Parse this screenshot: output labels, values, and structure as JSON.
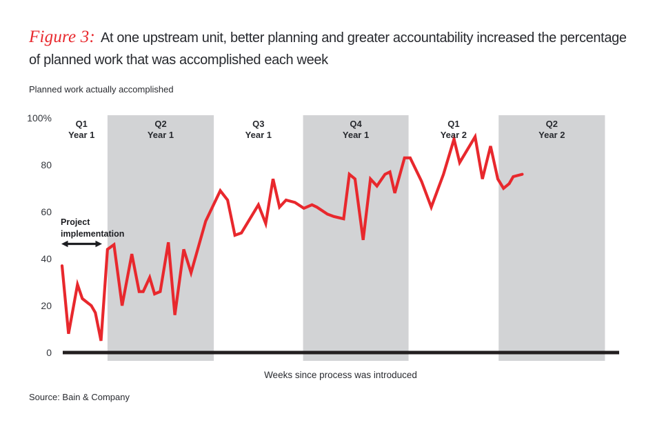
{
  "header": {
    "figure_label": "Figure 3:",
    "title_lines": {
      "l1": "At one upstream unit, better planning and greater accountability increased the percentage",
      "l2": "of planned work that was accomplished each week"
    }
  },
  "annotation": {
    "line1": "Project",
    "line2": "implementation"
  },
  "source": "Source: Bain & Company",
  "chart_data": {
    "type": "line",
    "ylabel": "Planned work actually accomplished",
    "xlabel": "Weeks since process was introduced",
    "ylim": [
      0,
      100
    ],
    "grid": false,
    "legend": false,
    "line_color": "#e8282d",
    "band_color": "#d2d3d5",
    "yticks": [
      {
        "value": 0,
        "label": "0"
      },
      {
        "value": 20,
        "label": "20"
      },
      {
        "value": 40,
        "label": "40"
      },
      {
        "value": 60,
        "label": "60"
      },
      {
        "value": 80,
        "label": "80"
      },
      {
        "value": 100,
        "label": "100%"
      }
    ],
    "quarters": [
      {
        "label": "Q1",
        "sublabel": "Year 1",
        "shaded": false,
        "start_week": 0.0,
        "end_week": 5.6,
        "label_center_week": 2.4
      },
      {
        "label": "Q2",
        "sublabel": "Year 1",
        "shaded": true,
        "start_week": 5.6,
        "end_week": 18.7
      },
      {
        "label": "Q3",
        "sublabel": "Year 1",
        "shaded": false,
        "start_week": 18.7,
        "end_week": 29.7
      },
      {
        "label": "Q4",
        "sublabel": "Year 1",
        "shaded": true,
        "start_week": 29.7,
        "end_week": 42.7
      },
      {
        "label": "Q1",
        "sublabel": "Year 2",
        "shaded": false,
        "start_week": 42.7,
        "end_week": 53.8
      },
      {
        "label": "Q2",
        "sublabel": "Year 2",
        "shaded": true,
        "start_week": 53.8,
        "end_week": 66.9
      }
    ],
    "series": [
      {
        "name": "Planned work actually accomplished",
        "points": [
          [
            0.0,
            37
          ],
          [
            0.8,
            8
          ],
          [
            1.9,
            29
          ],
          [
            2.5,
            23
          ],
          [
            3.6,
            20
          ],
          [
            4.1,
            17
          ],
          [
            4.8,
            5
          ],
          [
            5.6,
            44
          ],
          [
            6.4,
            46
          ],
          [
            7.4,
            20
          ],
          [
            8.6,
            42
          ],
          [
            9.5,
            26
          ],
          [
            10.0,
            26
          ],
          [
            10.8,
            32
          ],
          [
            11.4,
            25
          ],
          [
            12.1,
            26
          ],
          [
            13.1,
            47
          ],
          [
            13.9,
            16
          ],
          [
            15.0,
            44
          ],
          [
            15.9,
            34
          ],
          [
            17.7,
            56
          ],
          [
            19.5,
            69
          ],
          [
            20.4,
            65
          ],
          [
            21.3,
            50
          ],
          [
            22.1,
            51
          ],
          [
            24.2,
            63
          ],
          [
            25.1,
            55
          ],
          [
            26.0,
            74
          ],
          [
            26.8,
            62
          ],
          [
            27.6,
            65
          ],
          [
            28.7,
            64
          ],
          [
            29.8,
            61.5
          ],
          [
            30.8,
            63
          ],
          [
            31.4,
            62
          ],
          [
            32.7,
            59
          ],
          [
            33.5,
            58
          ],
          [
            34.7,
            57
          ],
          [
            35.4,
            76
          ],
          [
            36.1,
            74
          ],
          [
            37.1,
            48
          ],
          [
            38.0,
            74
          ],
          [
            38.8,
            71
          ],
          [
            39.8,
            76
          ],
          [
            40.4,
            77
          ],
          [
            41.0,
            68
          ],
          [
            42.2,
            83
          ],
          [
            42.9,
            83
          ],
          [
            44.3,
            73
          ],
          [
            45.5,
            62
          ],
          [
            47.0,
            76
          ],
          [
            48.3,
            91
          ],
          [
            49.0,
            81
          ],
          [
            50.9,
            92
          ],
          [
            51.8,
            74
          ],
          [
            52.8,
            88
          ],
          [
            53.7,
            74
          ],
          [
            54.4,
            70
          ],
          [
            55.1,
            72
          ],
          [
            55.6,
            75
          ],
          [
            56.7,
            76
          ]
        ]
      }
    ]
  }
}
